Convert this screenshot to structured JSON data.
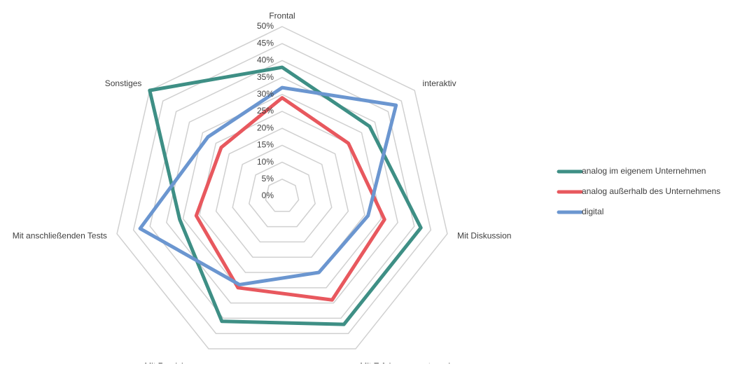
{
  "chart_data": {
    "type": "radar",
    "categories": [
      "Frontal",
      "interaktiv",
      "Mit Diskussion",
      "Mit Erfahrungsaustausch",
      "Mit Praxisbezug",
      "Mit anschließenden Tests",
      "Sonstiges"
    ],
    "series": [
      {
        "name": "analog im eigenem Unternehmen",
        "color": "#3e8f85",
        "values": [
          38,
          33,
          42,
          42,
          41,
          31,
          50
        ]
      },
      {
        "name": "analog außerhalb des Unternehmens",
        "color": "#e8585e",
        "values": [
          29,
          25,
          31,
          34,
          30,
          26,
          23
        ]
      },
      {
        "name": "digital",
        "color": "#6b96d0",
        "values": [
          32,
          43,
          26,
          25,
          29,
          43,
          28
        ]
      }
    ],
    "ylim": [
      0,
      50
    ],
    "yticks": [
      {
        "value": 0,
        "label": "0%"
      },
      {
        "value": 5,
        "label": "5%"
      },
      {
        "value": 10,
        "label": "10%"
      },
      {
        "value": 15,
        "label": "15%"
      },
      {
        "value": 20,
        "label": "20%"
      },
      {
        "value": 25,
        "label": "25%"
      },
      {
        "value": 30,
        "label": "30%"
      },
      {
        "value": 35,
        "label": "35%"
      },
      {
        "value": 40,
        "label": "40%"
      },
      {
        "value": 45,
        "label": "45%"
      },
      {
        "value": 50,
        "label": "50%"
      }
    ],
    "grid": true,
    "legend": "right"
  }
}
